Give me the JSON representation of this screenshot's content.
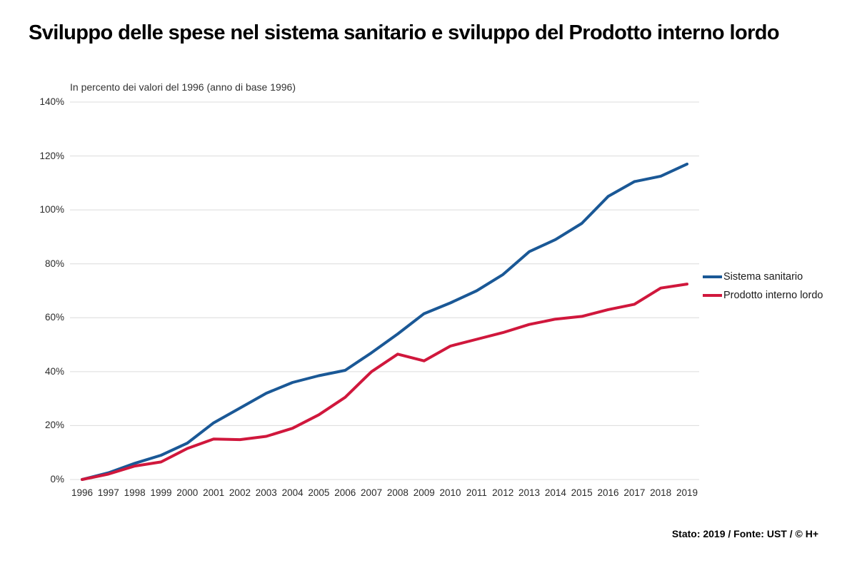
{
  "title": "Sviluppo delle spese nel sistema sanitario e sviluppo del Prodotto interno lordo",
  "subtitle": "In percento dei valori del 1996 (anno di base 1996)",
  "footer": "Stato: 2019 / Fonte: UST / © H+",
  "colors": {
    "series_blue": "#1a5896",
    "series_red": "#d0173c",
    "grid": "#dcdcdc",
    "axis_text": "#2b2b2b"
  },
  "legend": {
    "items": [
      {
        "label": "Sistema sanitario",
        "color": "#1a5896"
      },
      {
        "label": "Prodotto interno lordo",
        "color": "#d0173c"
      }
    ]
  },
  "chart_data": {
    "type": "line",
    "title": "Sviluppo delle spese nel sistema sanitario e sviluppo del Prodotto interno lordo",
    "subtitle": "In percento dei valori del 1996 (anno di base 1996)",
    "x": [
      1996,
      1997,
      1998,
      1999,
      2000,
      2001,
      2002,
      2003,
      2004,
      2005,
      2006,
      2007,
      2008,
      2009,
      2010,
      2011,
      2012,
      2013,
      2014,
      2015,
      2016,
      2017,
      2018,
      2019
    ],
    "series": [
      {
        "name": "Sistema sanitario",
        "color": "#1a5896",
        "values": [
          0,
          2.5,
          6,
          9,
          13.5,
          21,
          26.5,
          32,
          36,
          38.5,
          40.5,
          47,
          54,
          61.5,
          65.5,
          70,
          76,
          84.5,
          89,
          95,
          105,
          110.5,
          112.5,
          117
        ]
      },
      {
        "name": "Prodotto interno lordo",
        "color": "#d0173c",
        "values": [
          0,
          2,
          5,
          6.5,
          11.5,
          15,
          14.8,
          16,
          19,
          24,
          30.5,
          40,
          46.5,
          44,
          49.5,
          52,
          54.5,
          57.5,
          59.5,
          60.5,
          63,
          65,
          71,
          72.5
        ]
      }
    ],
    "xlabel": "",
    "ylabel": "",
    "ylim": [
      0,
      140
    ],
    "ytick_step": 20,
    "ytick_suffix": "%",
    "grid": true,
    "legend_position": "right"
  }
}
